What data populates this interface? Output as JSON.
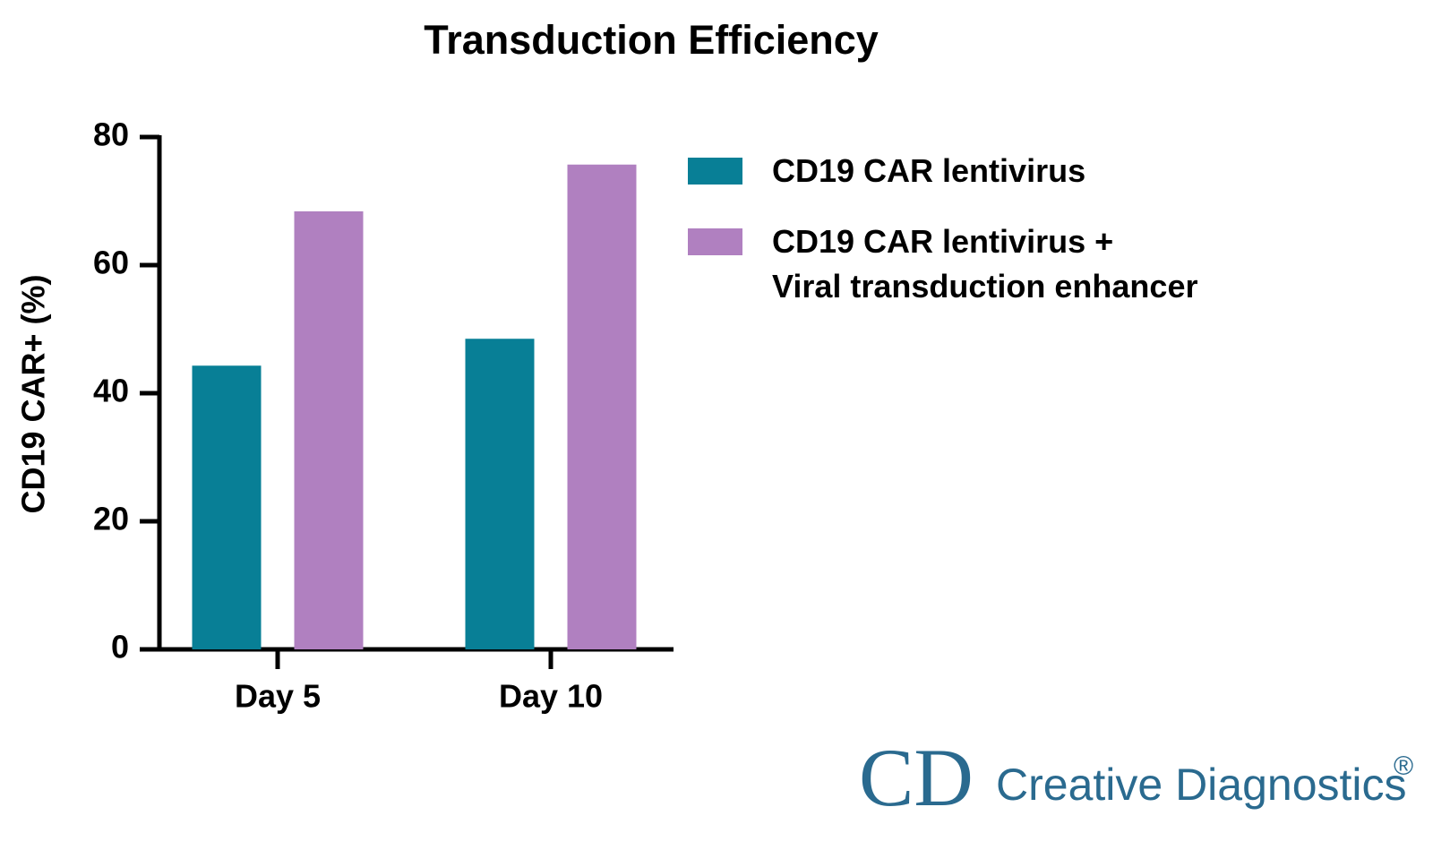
{
  "chart_data": {
    "type": "bar",
    "title": "Transduction Efficiency",
    "y_label": "CD19 CAR+ (%)",
    "categories": [
      "Day 5",
      "Day 10"
    ],
    "series": [
      {
        "name": "CD19 CAR lentivirus",
        "color": "#087f96",
        "values": [
          44.3,
          48.5
        ]
      },
      {
        "name": "CD19 CAR lentivirus +\nViral transduction enhancer",
        "color": "#b080c0",
        "values": [
          68.4,
          75.7
        ]
      }
    ],
    "ylim": [
      0,
      80
    ],
    "yticks": [
      0,
      20,
      40,
      60,
      80
    ],
    "grid": false
  },
  "logo": {
    "mark": "CD",
    "name": "Creative Diagnostics",
    "registered": "®"
  }
}
